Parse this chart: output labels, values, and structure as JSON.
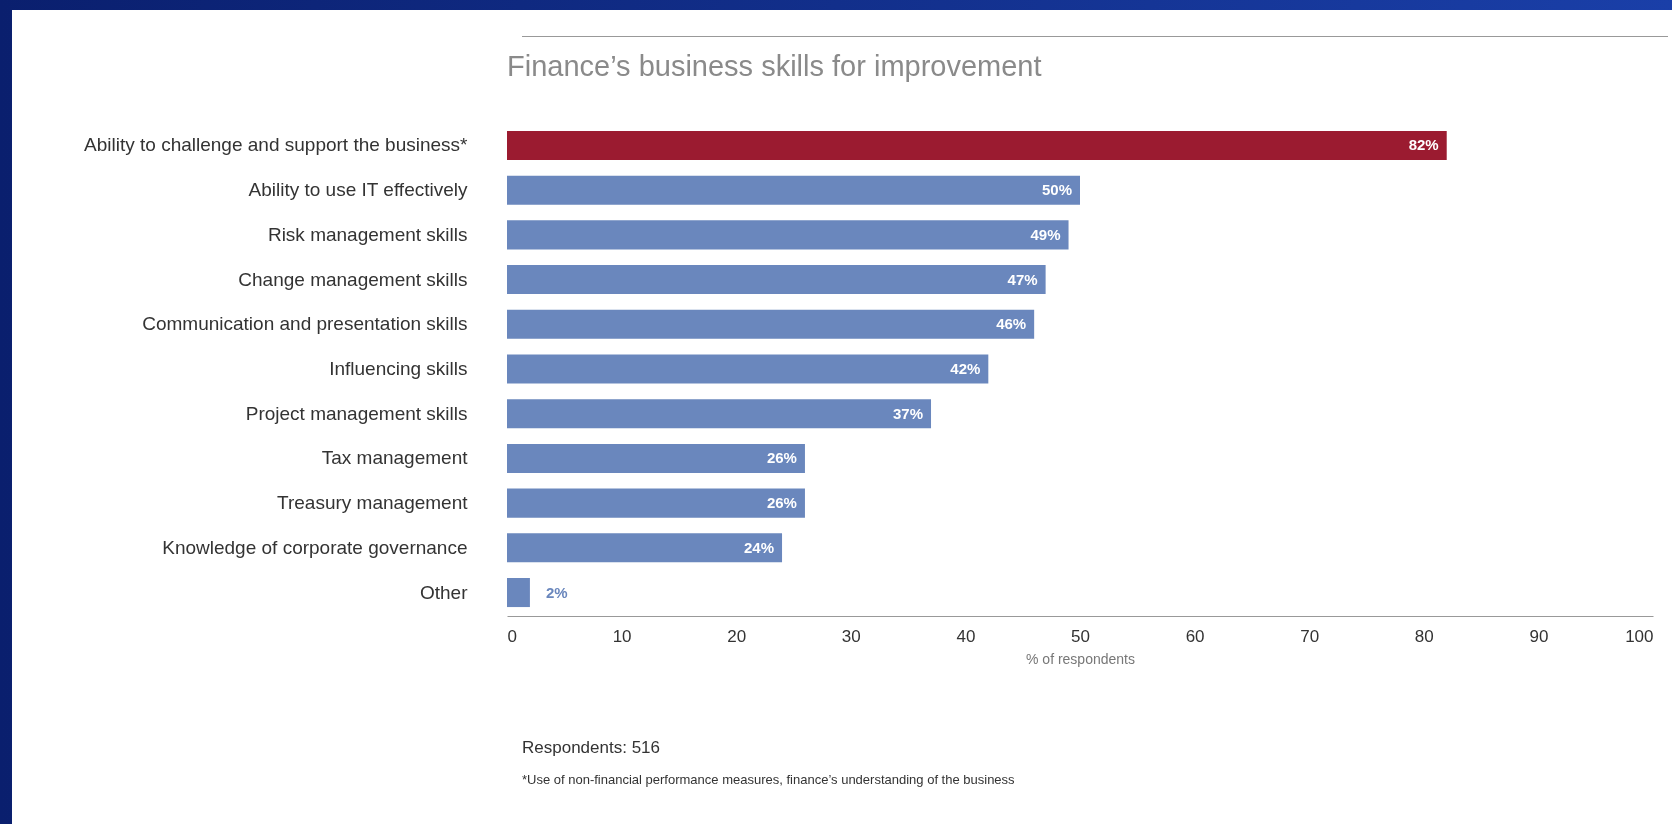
{
  "chart_data": {
    "type": "bar",
    "orientation": "horizontal",
    "title": "Finance’s business skills for improvement",
    "xlabel": "% of respondents",
    "categories": [
      "Ability to challenge and support the business*",
      "Ability to use IT effectively",
      "Risk management skills",
      "Change management skills",
      "Communication and presentation skills",
      "Influencing skills",
      "Project management skills",
      "Tax management",
      "Treasury management",
      "Knowledge of corporate governance",
      "Other"
    ],
    "values": [
      82,
      50,
      49,
      47,
      46,
      42,
      37,
      26,
      26,
      24,
      2
    ],
    "value_labels": [
      "82%",
      "50%",
      "49%",
      "47%",
      "46%",
      "42%",
      "37%",
      "26%",
      "26%",
      "24%",
      "2%"
    ],
    "colors": [
      "#9b1b30",
      "#6a87bd",
      "#6a87bd",
      "#6a87bd",
      "#6a87bd",
      "#6a87bd",
      "#6a87bd",
      "#6a87bd",
      "#6a87bd",
      "#6a87bd",
      "#6a87bd"
    ],
    "xlim": [
      0,
      100
    ],
    "xticks": [
      0,
      10,
      20,
      30,
      40,
      50,
      60,
      70,
      80,
      90,
      100
    ],
    "grid": false,
    "annotations": [
      "Respondents: 516",
      "*Use of non-financial performance measures, finance’s understanding of the business"
    ]
  }
}
